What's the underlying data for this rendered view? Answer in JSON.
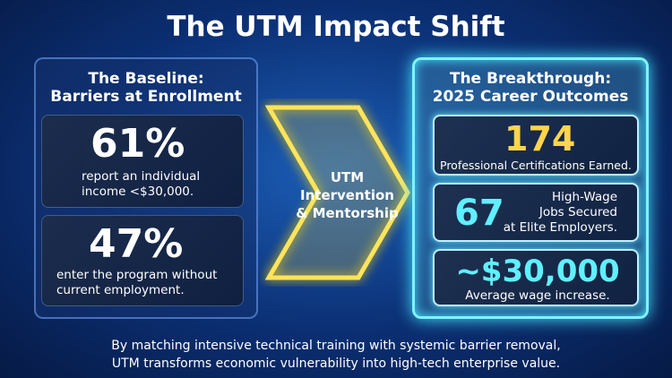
{
  "title": "The UTM Impact Shift",
  "baseline": {
    "heading": [
      "The Baseline:",
      "Barriers at Enrollment"
    ],
    "stats": [
      {
        "value": "61%",
        "text": [
          "report an individual",
          "income <$30,000."
        ]
      },
      {
        "value": "47%",
        "text": [
          "enter the program without",
          "current employment."
        ]
      }
    ]
  },
  "intervention": [
    "UTM",
    "Intervention",
    "& Mentorship"
  ],
  "breakthrough": {
    "heading": [
      "The Breakthrough:",
      "2025 Career Outcomes"
    ],
    "stats": [
      {
        "value": "174",
        "text": [
          "Professional Certifications Earned."
        ]
      },
      {
        "value": "67",
        "text": [
          "High-Wage",
          "Jobs Secured",
          "at Elite Employers."
        ]
      },
      {
        "value": "~$30,000",
        "text": [
          "Average wage increase."
        ]
      }
    ]
  },
  "footer": [
    "By matching intensive technical training with systemic barrier removal,",
    "UTM transforms economic vulnerability into high-tech enterprise value."
  ]
}
